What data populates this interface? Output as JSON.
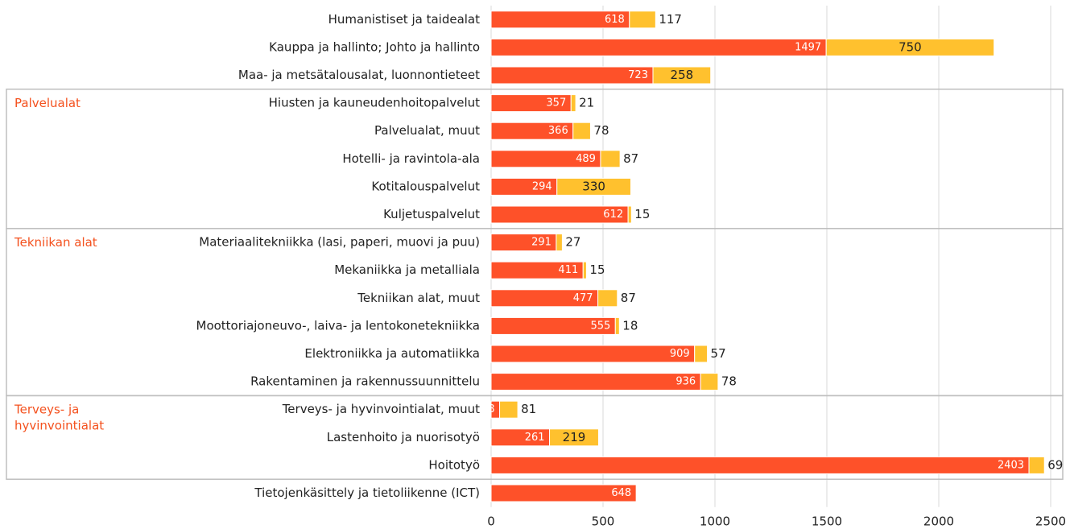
{
  "chart_data": {
    "type": "stacked-bar-horizontal",
    "categories": [
      "Humanistiset ja taidealat",
      "Kauppa ja hallinto; Johto ja hallinto",
      "Maa- ja metsätalousalat, luonnontieteet",
      "Hiusten ja kauneudenhoitopalvelut",
      "Palvelualat, muut",
      "Hotelli- ja ravintola-ala",
      "Kotitalouspalvelut",
      "Kuljetuspalvelut",
      "Materiaalitekniikka (lasi, paperi, muovi ja puu)",
      "Mekaniikka ja metalliala",
      "Tekniikan alat, muut",
      "Moottoriajoneuvo-, laiva- ja lentokonetekniikka",
      "Elektroniikka ja automatiikka",
      "Rakentaminen ja rakennussuunnittelu",
      "Terveys- ja hyvinvointialat, muut",
      "Lastenhoito ja nuorisotyö",
      "Hoitotyö",
      "Tietojenkäsittely ja tietoliikenne (ICT)"
    ],
    "series": [
      {
        "color": "#fe5129",
        "values": [
          618,
          1497,
          723,
          357,
          366,
          489,
          294,
          612,
          291,
          411,
          477,
          555,
          909,
          936,
          38,
          261,
          2403,
          648
        ]
      },
      {
        "color": "#ffc12e",
        "values": [
          117,
          750,
          258,
          21,
          78,
          87,
          330,
          15,
          27,
          15,
          87,
          18,
          57,
          78,
          81,
          219,
          69,
          null
        ]
      }
    ],
    "groups": [
      {
        "name": "Palvelualat",
        "categories": [
          "Hiusten ja kauneudenhoitopalvelut",
          "Palvelualat, muut",
          "Hotelli- ja ravintola-ala",
          "Kotitalouspalvelut",
          "Kuljetuspalvelut"
        ]
      },
      {
        "name": "Tekniikan alat",
        "categories": [
          "Materiaalitekniikka (lasi, paperi, muovi ja puu)",
          "Mekaniikka ja metalliala",
          "Tekniikan alat, muut",
          "Moottoriajoneuvo-, laiva- ja lentokonetekniikka",
          "Elektroniikka ja automatiikka",
          "Rakentaminen ja rakennussuunnittelu"
        ]
      },
      {
        "name": "Terveys- ja hyvinvointialat",
        "categories": [
          "Terveys- ja hyvinvointialat, muut",
          "Lastenhoito ja nuorisotyö",
          "Hoitotyö"
        ]
      }
    ],
    "xlim": [
      0,
      2500
    ],
    "xticks": [
      0,
      500,
      1000,
      1500,
      2000,
      2500
    ],
    "grid": true
  }
}
